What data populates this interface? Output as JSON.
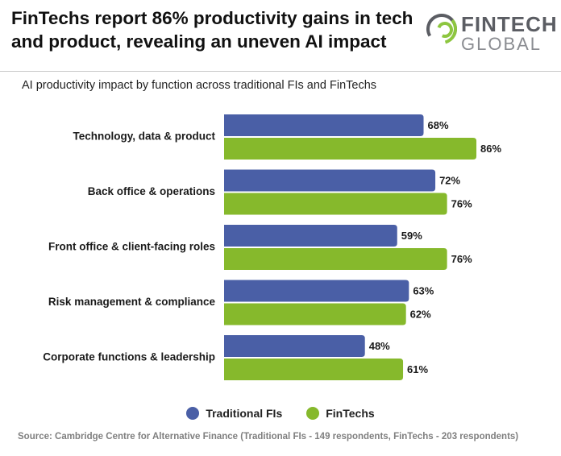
{
  "header": {
    "title": "FinTechs report 86% productivity gains in tech and product, revealing an uneven AI impact",
    "logo_word1": "FINTECH",
    "logo_word2": "GLOBAL"
  },
  "colors": {
    "traditional": "#4a5fa6",
    "fintech": "#86b92c",
    "logo_green": "#8dc63f",
    "logo_grey": "#5b5d63"
  },
  "source": "Source: Cambridge Centre for Alternative Finance (Traditional FIs - 149 respondents, FinTechs - 203 respondents)",
  "chart_data": {
    "type": "bar",
    "orientation": "horizontal",
    "title": "AI productivity impact by function across traditional FIs and FinTechs",
    "categories": [
      "Technology, data & product",
      "Back office & operations",
      "Front office & client-facing roles",
      "Risk management & compliance",
      "Corporate functions & leadership"
    ],
    "series": [
      {
        "name": "Traditional FIs",
        "values": [
          68,
          72,
          59,
          63,
          48
        ]
      },
      {
        "name": "FinTechs",
        "values": [
          86,
          76,
          76,
          62,
          61
        ]
      }
    ],
    "value_suffix": "%",
    "xlim": [
      0,
      100
    ],
    "grid": false,
    "legend": "bottom-center"
  }
}
